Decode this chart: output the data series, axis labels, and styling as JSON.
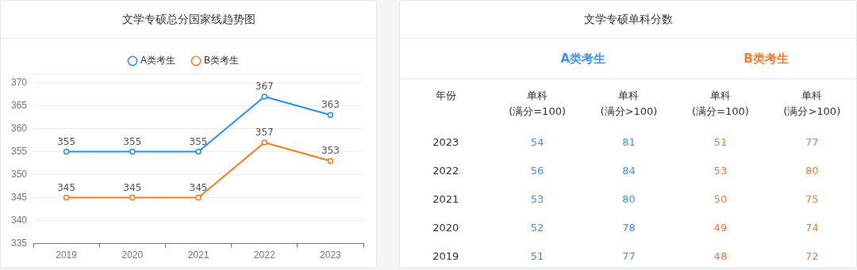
{
  "chart_data": [
    {
      "type": "line",
      "title": "文学专硕总分国家线趋势图",
      "categories": [
        "2019",
        "2020",
        "2021",
        "2022",
        "2023"
      ],
      "series": [
        {
          "name": "A类考生",
          "color": "#1e90ff",
          "values": [
            355,
            355,
            355,
            367,
            363
          ]
        },
        {
          "name": "B类考生",
          "color": "#ff7a1a",
          "values": [
            345,
            345,
            345,
            357,
            353
          ]
        }
      ],
      "ylim": [
        335,
        372
      ],
      "yticks": [
        335,
        340,
        345,
        350,
        355,
        360,
        365,
        370,
        {
          "value": 372,
          "label": null
        }
      ],
      "grid": "y",
      "legend": "top",
      "marker": "circle",
      "data_labels": true
    },
    {
      "type": "heatmap",
      "title": "文学专硕单科分数",
      "ylabel": "年份",
      "categories": [
        "单科\n(满分=100)",
        "单科\n(满分>100)",
        "单科\n(满分=100)",
        "单科\n(满分>100)"
      ],
      "y_categories": [
        "2023",
        "2022",
        "2021",
        "2020",
        "2019"
      ],
      "annotations": [
        "A类考生",
        "B类考生"
      ],
      "colors": [
        "#3f93f5",
        "#3f93f5",
        "#ff7a2e",
        "#ff7a2e"
      ],
      "data_labels": true,
      "cells": [
        [
          54,
          81,
          51,
          77
        ],
        [
          56,
          84,
          53,
          80
        ],
        [
          53,
          80,
          50,
          75
        ],
        [
          52,
          78,
          49,
          74
        ],
        [
          51,
          77,
          48,
          72
        ]
      ]
    }
  ]
}
